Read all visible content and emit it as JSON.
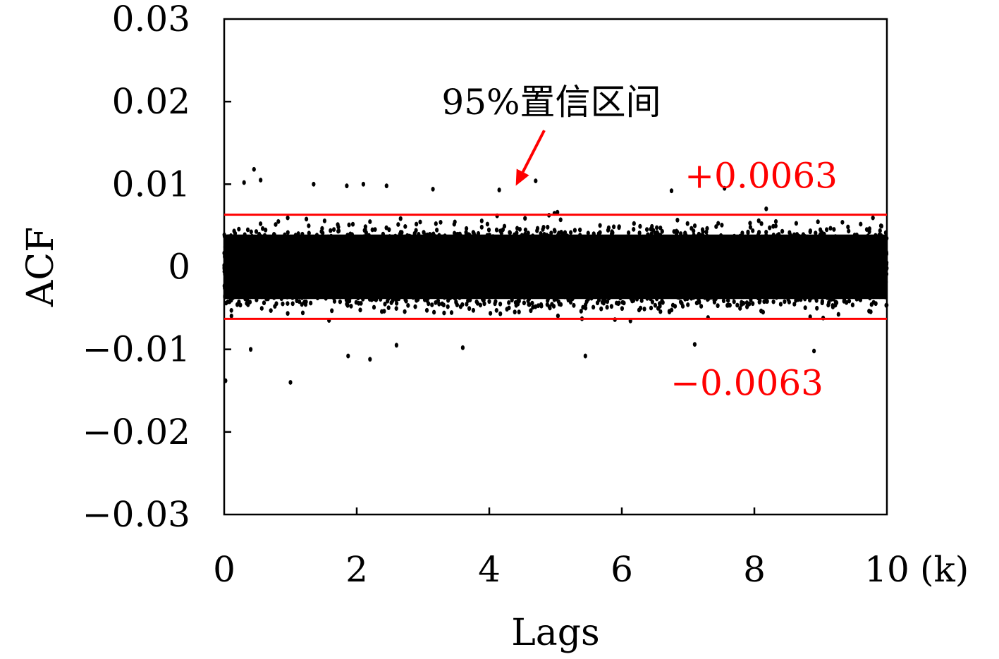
{
  "chart_data": {
    "type": "scatter",
    "title": "",
    "xlabel": "Lags",
    "ylabel": "ACF",
    "x_unit": "(k)",
    "xlim": [
      0,
      10
    ],
    "ylim": [
      -0.03,
      0.03
    ],
    "x_ticks": [
      0,
      2,
      4,
      6,
      8,
      10
    ],
    "x_tick_labels": [
      "0",
      "2",
      "4",
      "6",
      "8",
      "10"
    ],
    "y_ticks": [
      0.03,
      0.02,
      0.01,
      0,
      -0.01,
      -0.02,
      -0.03
    ],
    "y_tick_labels": [
      "0.03",
      "0.02",
      "0.01",
      "0",
      "−0.01",
      "−0.02",
      "−0.03"
    ],
    "grid": false,
    "point_color": "#000000",
    "series": [
      {
        "values_description_note_free": true,
        "x_range": [
          0,
          10
        ],
        "core_band": [
          -0.0063,
          0.0063
        ],
        "outliers": [
          {
            "x": 0.45,
            "y": 0.0118
          },
          {
            "x": 0.3,
            "y": 0.0102
          },
          {
            "x": 0.55,
            "y": 0.0105
          },
          {
            "x": 1.35,
            "y": 0.01
          },
          {
            "x": 1.85,
            "y": 0.0098
          },
          {
            "x": 2.1,
            "y": 0.01
          },
          {
            "x": 2.45,
            "y": 0.0098
          },
          {
            "x": 3.15,
            "y": 0.0094
          },
          {
            "x": 4.15,
            "y": 0.0093
          },
          {
            "x": 4.7,
            "y": 0.0104
          },
          {
            "x": 6.75,
            "y": 0.0092
          },
          {
            "x": 7.55,
            "y": 0.0095
          },
          {
            "x": 0.02,
            "y": -0.0138
          },
          {
            "x": 1.0,
            "y": -0.014
          },
          {
            "x": 1.87,
            "y": -0.0108
          },
          {
            "x": 2.2,
            "y": -0.0112
          },
          {
            "x": 5.45,
            "y": -0.0108
          },
          {
            "x": 8.9,
            "y": -0.0102
          },
          {
            "x": 0.4,
            "y": -0.01
          },
          {
            "x": 2.6,
            "y": -0.0095
          },
          {
            "x": 3.6,
            "y": -0.0098
          },
          {
            "x": 7.1,
            "y": -0.0094
          }
        ]
      }
    ],
    "confidence_bounds": {
      "upper": 0.0063,
      "lower": -0.0063,
      "upper_label": "+0.0063",
      "lower_label": "−0.0063",
      "color": "#ff0000"
    },
    "annotation": {
      "text": "95%置信区间",
      "arrow_color": "#ff0000",
      "arrow_target": {
        "x": 4.4,
        "y": 0.0098
      }
    }
  }
}
